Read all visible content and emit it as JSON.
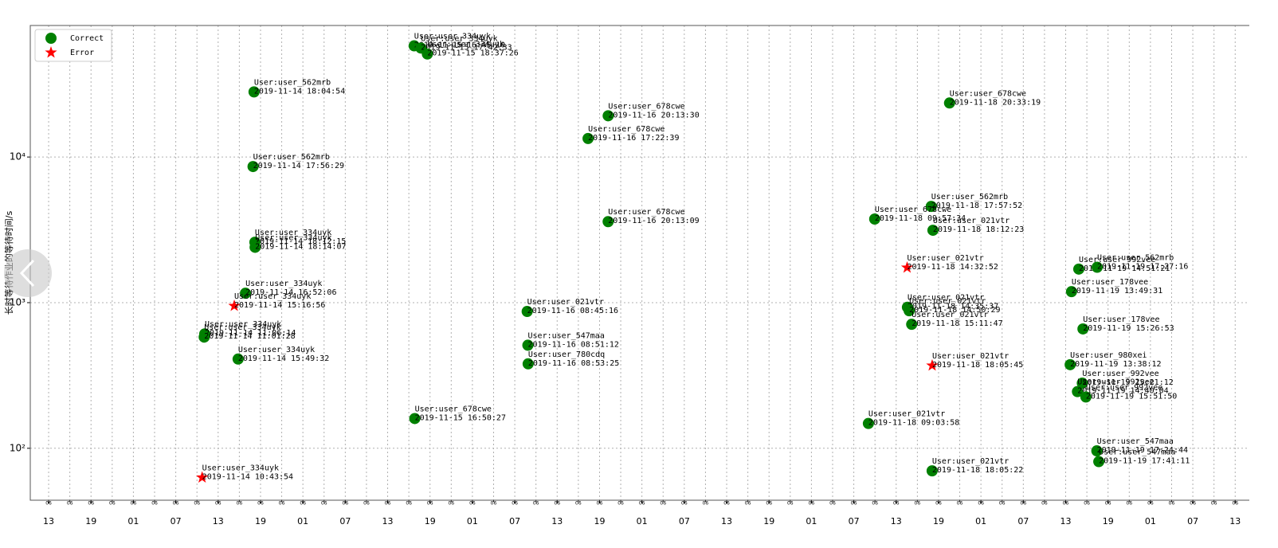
{
  "chart_data": {
    "type": "scatter",
    "ylabel": "长时等待作业的等待时间/s",
    "yscale": "log",
    "xscale": "time",
    "ylim": [
      44,
      80000
    ],
    "yticks": [
      {
        "value": 100,
        "label": "10²"
      },
      {
        "value": 1000,
        "label": "10³"
      },
      {
        "value": 10000,
        "label": "10⁴"
      }
    ],
    "xlim": [
      "2019-11-13 10:24",
      "2019-11-20 15:00"
    ],
    "xticks": [
      {
        "value": "2019-11-13 13:00",
        "label": "13"
      },
      {
        "value": "2019-11-13 19:00",
        "label": "19"
      },
      {
        "value": "2019-11-14 01:00",
        "label": "01"
      },
      {
        "value": "2019-11-14 07:00",
        "label": "07"
      },
      {
        "value": "2019-11-14 13:00",
        "label": "13"
      },
      {
        "value": "2019-11-14 19:00",
        "label": "19"
      },
      {
        "value": "2019-11-15 01:00",
        "label": "01"
      },
      {
        "value": "2019-11-15 07:00",
        "label": "07"
      },
      {
        "value": "2019-11-15 13:00",
        "label": "13"
      },
      {
        "value": "2019-11-15 19:00",
        "label": "19"
      },
      {
        "value": "2019-11-16 01:00",
        "label": "01"
      },
      {
        "value": "2019-11-16 07:00",
        "label": "07"
      },
      {
        "value": "2019-11-16 13:00",
        "label": "13"
      },
      {
        "value": "2019-11-16 19:00",
        "label": "19"
      },
      {
        "value": "2019-11-17 01:00",
        "label": "01"
      },
      {
        "value": "2019-11-17 07:00",
        "label": "07"
      },
      {
        "value": "2019-11-17 13:00",
        "label": "13"
      },
      {
        "value": "2019-11-17 19:00",
        "label": "19"
      },
      {
        "value": "2019-11-18 01:00",
        "label": "01"
      },
      {
        "value": "2019-11-18 07:00",
        "label": "07"
      },
      {
        "value": "2019-11-18 13:00",
        "label": "13"
      },
      {
        "value": "2019-11-18 19:00",
        "label": "19"
      },
      {
        "value": "2019-11-19 01:00",
        "label": "01"
      },
      {
        "value": "2019-11-19 07:00",
        "label": "07"
      },
      {
        "value": "2019-11-19 13:00",
        "label": "13"
      },
      {
        "value": "2019-11-19 19:00",
        "label": "19"
      },
      {
        "value": "2019-11-20 01:00",
        "label": "01"
      },
      {
        "value": "2019-11-20 07:00",
        "label": "07"
      },
      {
        "value": "2019-11-20 13:00",
        "label": "13"
      }
    ],
    "xminorticks": [
      {
        "value": "2019-11-13 13:00",
        "label": "06"
      },
      {
        "value": "2019-11-13 16:00",
        "label": "06"
      },
      {
        "value": "2019-11-13 19:00",
        "label": "06"
      },
      {
        "value": "2019-11-13 22:00",
        "label": "06"
      },
      {
        "value": "2019-11-14 01:00",
        "label": "06"
      },
      {
        "value": "2019-11-14 04:00",
        "label": "06"
      },
      {
        "value": "2019-11-14 07:00",
        "label": "06"
      },
      {
        "value": "2019-11-14 10:00",
        "label": "06"
      },
      {
        "value": "2019-11-14 13:00",
        "label": "06"
      },
      {
        "value": "2019-11-14 16:00",
        "label": "06"
      },
      {
        "value": "2019-11-14 19:00",
        "label": "06"
      },
      {
        "value": "2019-11-14 22:00",
        "label": "06"
      },
      {
        "value": "2019-11-15 01:00",
        "label": "06"
      },
      {
        "value": "2019-11-15 04:00",
        "label": "06"
      },
      {
        "value": "2019-11-15 07:00",
        "label": "06"
      },
      {
        "value": "2019-11-15 10:00",
        "label": "06"
      },
      {
        "value": "2019-11-15 13:00",
        "label": "06"
      },
      {
        "value": "2019-11-15 16:00",
        "label": "06"
      },
      {
        "value": "2019-11-15 19:00",
        "label": "06"
      },
      {
        "value": "2019-11-15 22:00",
        "label": "06"
      },
      {
        "value": "2019-11-16 01:00",
        "label": "06"
      },
      {
        "value": "2019-11-16 04:00",
        "label": "06"
      },
      {
        "value": "2019-11-16 07:00",
        "label": "06"
      },
      {
        "value": "2019-11-16 10:00",
        "label": "06"
      },
      {
        "value": "2019-11-16 13:00",
        "label": "06"
      },
      {
        "value": "2019-11-16 16:00",
        "label": "06"
      },
      {
        "value": "2019-11-16 19:00",
        "label": "06"
      },
      {
        "value": "2019-11-16 22:00",
        "label": "06"
      },
      {
        "value": "2019-11-17 01:00",
        "label": "06"
      },
      {
        "value": "2019-11-17 04:00",
        "label": "06"
      },
      {
        "value": "2019-11-17 07:00",
        "label": "06"
      },
      {
        "value": "2019-11-17 10:00",
        "label": "06"
      },
      {
        "value": "2019-11-17 13:00",
        "label": "06"
      },
      {
        "value": "2019-11-17 16:00",
        "label": "06"
      },
      {
        "value": "2019-11-17 19:00",
        "label": "06"
      },
      {
        "value": "2019-11-17 22:00",
        "label": "06"
      },
      {
        "value": "2019-11-18 01:00",
        "label": "06"
      },
      {
        "value": "2019-11-18 04:00",
        "label": "06"
      },
      {
        "value": "2019-11-18 07:00",
        "label": "06"
      },
      {
        "value": "2019-11-18 10:00",
        "label": "06"
      },
      {
        "value": "2019-11-18 13:00",
        "label": "06"
      },
      {
        "value": "2019-11-18 16:00",
        "label": "06"
      },
      {
        "value": "2019-11-18 19:00",
        "label": "06"
      },
      {
        "value": "2019-11-18 22:00",
        "label": "06"
      },
      {
        "value": "2019-11-19 01:00",
        "label": "06"
      },
      {
        "value": "2019-11-19 04:00",
        "label": "06"
      },
      {
        "value": "2019-11-19 07:00",
        "label": "06"
      },
      {
        "value": "2019-11-19 10:00",
        "label": "06"
      },
      {
        "value": "2019-11-19 13:00",
        "label": "06"
      },
      {
        "value": "2019-11-19 16:00",
        "label": "06"
      },
      {
        "value": "2019-11-19 19:00",
        "label": "06"
      },
      {
        "value": "2019-11-19 22:00",
        "label": "06"
      },
      {
        "value": "2019-11-20 01:00",
        "label": "06"
      },
      {
        "value": "2019-11-20 04:00",
        "label": "06"
      },
      {
        "value": "2019-11-20 07:00",
        "label": "06"
      },
      {
        "value": "2019-11-20 10:00",
        "label": "06"
      },
      {
        "value": "2019-11-20 13:00",
        "label": "06"
      }
    ],
    "grid": true,
    "legend": "upper left",
    "series": [
      {
        "name": "Correct",
        "color": "#008000",
        "marker": "circle",
        "x": [
          "2019-11-14 18:04:54",
          "2019-11-14 17:56:29",
          "2019-11-14 18:12:15",
          "2019-11-14 18:14:07",
          "2019-11-14 16:52:06",
          "2019-11-14 11:06:14",
          "2019-11-14 11:01:28",
          "2019-11-14 15:49:32",
          "2019-11-15 16:45:10",
          "2019-11-15 17:42:33",
          "2019-11-15 18:37:26",
          "2019-11-15 16:50:27",
          "2019-11-16 20:13:30",
          "2019-11-16 17:22:39",
          "2019-11-16 20:13:09",
          "2019-11-16 08:45:16",
          "2019-11-16 08:51:12",
          "2019-11-16 08:53:25",
          "2019-11-18 20:33:19",
          "2019-11-18 17:57:52",
          "2019-11-18 09:57:34",
          "2019-11-18 18:12:23",
          "2019-11-18 14:35:37",
          "2019-11-18 14:50:29",
          "2019-11-18 15:11:47",
          "2019-11-18 09:03:58",
          "2019-11-18 18:05:22",
          "2019-11-19 14:51:21",
          "2019-11-19 17:27:16",
          "2019-11-19 13:49:31",
          "2019-11-19 15:26:53",
          "2019-11-19 13:38:12",
          "2019-11-19 15:21:12",
          "2019-11-19 14:40:04",
          "2019-11-19 15:51:50",
          "2019-11-19 17:24:44",
          "2019-11-19 17:41:11"
        ],
        "values": [
          28000,
          8600,
          2600,
          2400,
          1160,
          610,
          580,
          410,
          58000,
          56000,
          51000,
          160,
          19200,
          13400,
          3600,
          870,
          510,
          380,
          23500,
          4580,
          3750,
          3140,
          930,
          880,
          710,
          148,
          70,
          1700,
          1750,
          1190,
          660,
          375,
          280,
          245,
          225,
          96,
          81
        ],
        "labels": [
          "User:user_562mrb",
          "User:user_562mrb",
          "User:user_334uyk",
          "User:user_334uyk",
          "User:user_334uyk",
          "User:user_334uyk",
          "User:user_334uyk",
          "User:user_334uyk",
          "User:user_334uyk",
          "User:user_334uyk",
          "User:user_334uyk",
          "User:user_678cwe",
          "User:user_678cwe",
          "User:user_678cwe",
          "User:user_678cwe",
          "User:user_021vtr",
          "User:user_547maa",
          "User:user_780cdq",
          "User:user_678cwe",
          "User:user_562mrb",
          "User:user_678cwe",
          "User:user_021vtr",
          "User:user_021vtr",
          "User:user_021vtr",
          "User:user_021vtr",
          "User:user_021vtr",
          "User:user_021vtr",
          "User:user_992vee",
          "User:user_562mrb",
          "User:user_178vee",
          "User:user_178vee",
          "User:user_980xei",
          "User:user_992vee",
          "User:user_992vee",
          "User:user_992vee",
          "User:user_547maa",
          "User:user_547maa"
        ]
      },
      {
        "name": "Error",
        "color": "#ff0000",
        "marker": "star",
        "x": [
          "2019-11-14 15:16:56",
          "2019-11-14 10:43:54",
          "2019-11-18 14:32:52",
          "2019-11-18 18:05:45"
        ],
        "values": [
          950,
          63,
          1740,
          370
        ],
        "labels": [
          "User:user_334uyk",
          "User:user_334uyk",
          "User:user_021vtr",
          "User:user_021vtr"
        ]
      }
    ]
  }
}
